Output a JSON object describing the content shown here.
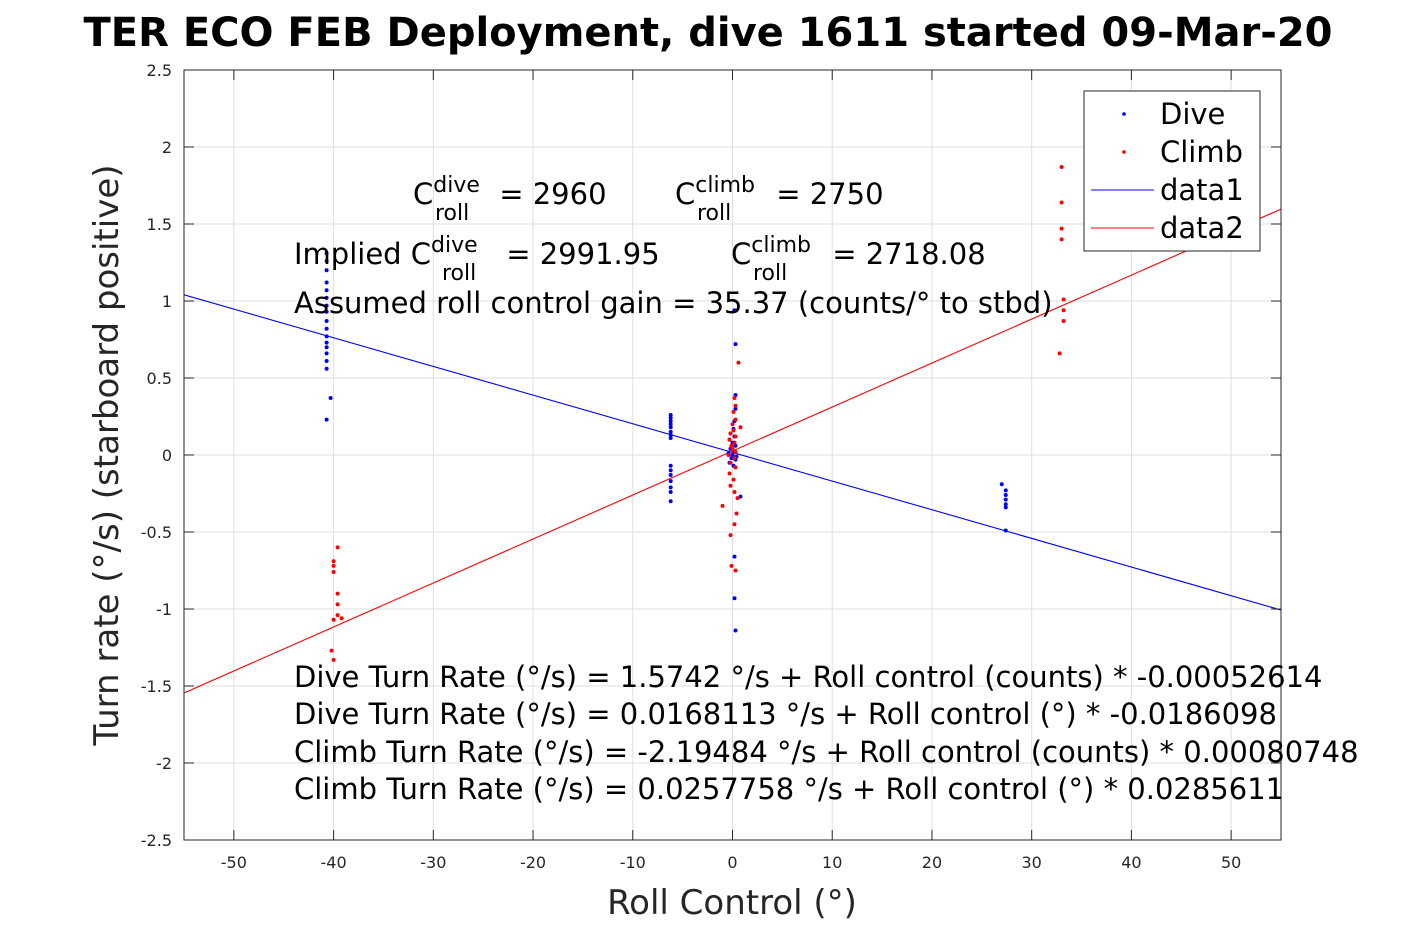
{
  "chart_data": {
    "type": "scatter",
    "title": "TER ECO FEB Deployment, dive 1611 started 09-Mar-20",
    "xlabel": "Roll Control (°)",
    "ylabel": "Turn rate (°/s) (starboard positive)",
    "xlim": [
      -55,
      55
    ],
    "ylim": [
      -2.5,
      2.5
    ],
    "x_ticks": [
      "-50",
      "-40",
      "-30",
      "-20",
      "-10",
      "0",
      "10",
      "20",
      "30",
      "40",
      "50"
    ],
    "y_ticks": [
      "-2.5",
      "-2",
      "-1.5",
      "-1",
      "-0.5",
      "0",
      "0.5",
      "1",
      "1.5",
      "2",
      "2.5"
    ],
    "grid": true,
    "legend_position": "top-right",
    "legend": [
      "Dive",
      "Climb",
      "data1",
      "data2"
    ],
    "colors": {
      "dive": "#0000ff",
      "climb": "#ff0000"
    },
    "series": [
      {
        "name": "Dive",
        "style": "dots",
        "color": "#0000ff",
        "points": [
          [
            -40.7,
            1.31
          ],
          [
            -40.7,
            1.26
          ],
          [
            -40.7,
            1.2
          ],
          [
            -40.7,
            1.12
          ],
          [
            -40.7,
            1.07
          ],
          [
            -40.7,
            1.02
          ],
          [
            -40.7,
            0.97
          ],
          [
            -40.7,
            0.93
          ],
          [
            -40.7,
            0.87
          ],
          [
            -40.7,
            0.82
          ],
          [
            -40.7,
            0.77
          ],
          [
            -40.7,
            0.73
          ],
          [
            -40.7,
            0.7
          ],
          [
            -40.7,
            0.66
          ],
          [
            -40.7,
            0.61
          ],
          [
            -40.7,
            0.56
          ],
          [
            -40.3,
            0.37
          ],
          [
            -40.7,
            0.23
          ],
          [
            -6.2,
            0.26
          ],
          [
            -6.2,
            0.24
          ],
          [
            -6.2,
            0.22
          ],
          [
            -6.2,
            0.2
          ],
          [
            -6.2,
            0.18
          ],
          [
            -6.2,
            0.15
          ],
          [
            -6.2,
            0.13
          ],
          [
            -6.2,
            0.11
          ],
          [
            -6.2,
            -0.07
          ],
          [
            -6.2,
            -0.1
          ],
          [
            -6.2,
            -0.13
          ],
          [
            -6.2,
            -0.17
          ],
          [
            -6.2,
            -0.21
          ],
          [
            -6.2,
            -0.24
          ],
          [
            -6.2,
            -0.3
          ],
          [
            0.2,
            0.94
          ],
          [
            0.3,
            0.72
          ],
          [
            0.3,
            0.39
          ],
          [
            0.3,
            0.3
          ],
          [
            0.2,
            0.22
          ],
          [
            0.1,
            0.17
          ],
          [
            -0.2,
            0.14
          ],
          [
            0.2,
            0.12
          ],
          [
            -0.3,
            0.1
          ],
          [
            0.0,
            0.08
          ],
          [
            0.3,
            0.06
          ],
          [
            -0.2,
            0.04
          ],
          [
            0.2,
            0.02
          ],
          [
            -0.4,
            0.01
          ],
          [
            0.0,
            0.0
          ],
          [
            0.4,
            -0.01
          ],
          [
            -0.1,
            -0.02
          ],
          [
            0.3,
            -0.03
          ],
          [
            -0.3,
            -0.05
          ],
          [
            0.1,
            -0.07
          ],
          [
            0.8,
            -0.27
          ],
          [
            0.2,
            -0.66
          ],
          [
            0.2,
            -0.93
          ],
          [
            0.3,
            -1.14
          ],
          [
            27.0,
            -0.19
          ],
          [
            27.4,
            -0.23
          ],
          [
            27.4,
            -0.26
          ],
          [
            27.4,
            -0.29
          ],
          [
            27.4,
            -0.32
          ],
          [
            27.4,
            -0.34
          ],
          [
            27.4,
            -0.49
          ]
        ]
      },
      {
        "name": "Climb",
        "style": "dots",
        "color": "#ff0000",
        "points": [
          [
            -40.0,
            -0.69
          ],
          [
            -40.0,
            -0.72
          ],
          [
            -40.0,
            -0.76
          ],
          [
            -39.6,
            -0.6
          ],
          [
            -39.6,
            -0.9
          ],
          [
            -39.6,
            -0.97
          ],
          [
            -39.6,
            -1.04
          ],
          [
            -40.0,
            -1.07
          ],
          [
            -39.2,
            -1.06
          ],
          [
            -40.2,
            -1.27
          ],
          [
            -40.0,
            -1.33
          ],
          [
            0.6,
            0.6
          ],
          [
            0.2,
            0.37
          ],
          [
            0.3,
            0.32
          ],
          [
            0.1,
            0.28
          ],
          [
            0.3,
            0.23
          ],
          [
            0.0,
            0.2
          ],
          [
            0.8,
            0.18
          ],
          [
            0.1,
            0.16
          ],
          [
            -0.2,
            0.14
          ],
          [
            0.3,
            0.12
          ],
          [
            -0.3,
            0.1
          ],
          [
            0.2,
            0.08
          ],
          [
            -0.1,
            0.06
          ],
          [
            0.0,
            0.04
          ],
          [
            0.3,
            0.02
          ],
          [
            -0.4,
            0.0
          ],
          [
            0.2,
            -0.02
          ],
          [
            -0.2,
            -0.05
          ],
          [
            0.3,
            -0.08
          ],
          [
            -0.3,
            -0.12
          ],
          [
            0.1,
            -0.16
          ],
          [
            -0.2,
            -0.2
          ],
          [
            0.2,
            -0.24
          ],
          [
            0.5,
            -0.28
          ],
          [
            -1.0,
            -0.33
          ],
          [
            0.4,
            -0.38
          ],
          [
            0.2,
            -0.45
          ],
          [
            -0.2,
            -0.52
          ],
          [
            -0.1,
            -0.72
          ],
          [
            0.3,
            -0.75
          ],
          [
            33.0,
            1.87
          ],
          [
            33.0,
            1.64
          ],
          [
            33.0,
            1.47
          ],
          [
            33.0,
            1.4
          ],
          [
            33.2,
            1.01
          ],
          [
            33.2,
            0.94
          ],
          [
            33.2,
            0.87
          ],
          [
            32.8,
            0.66
          ]
        ]
      },
      {
        "name": "data1",
        "style": "line",
        "color": "#0000ff",
        "intercept": 0.0168113,
        "slope": -0.0186098
      },
      {
        "name": "data2",
        "style": "line",
        "color": "#ff0000",
        "intercept": 0.0257758,
        "slope": 0.0285611
      }
    ],
    "annotations": {
      "c_roll_dive": {
        "prefix": "C",
        "sup": "dive",
        "sub": "roll",
        "value": " = 2960"
      },
      "c_roll_climb": {
        "prefix": "C",
        "sup": "climb",
        "sub": "roll",
        "value": " = 2750"
      },
      "implied_dive": {
        "prefix": "Implied C",
        "sup": "dive",
        "sub": "roll",
        "value": " = 2991.95"
      },
      "implied_climb": {
        "prefix": "C",
        "sup": "climb",
        "sub": "roll",
        "value": " = 2718.08"
      },
      "gain": "Assumed roll control gain = 35.37 (counts/° to stbd)",
      "equations": [
        "Dive Turn Rate (°/s) = 1.5742 °/s + Roll control (counts) * -0.00052614",
        "Dive Turn Rate (°/s) = 0.0168113 °/s + Roll control (°) * -0.0186098",
        "Climb Turn Rate (°/s) = -2.19484 °/s + Roll control (counts) * 0.00080748",
        "Climb Turn Rate (°/s) = 0.0257758 °/s + Roll control (°) * 0.0285611"
      ]
    }
  }
}
